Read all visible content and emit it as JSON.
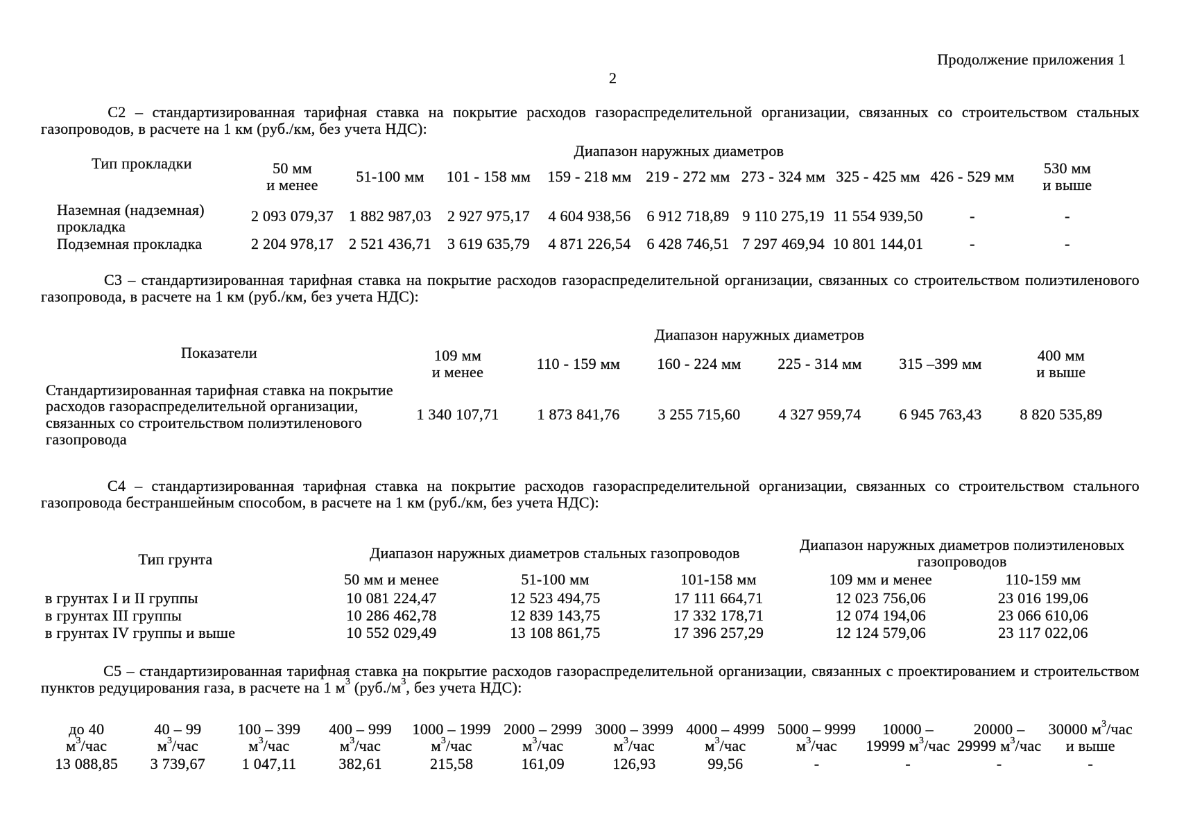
{
  "header": {
    "continuation": "Продолжение приложения 1",
    "page_number": "2"
  },
  "sections": {
    "c2": {
      "para_line1": "С2 – стандартизированная тарифная ставка на покрытие расходов газораспределительной организации, связанных со строительством стальных",
      "para_line2": "газопроводов, в расчете на 1 км (руб./км, без учета НДС):",
      "table": {
        "corner": "Тип прокладки",
        "group": "Диапазон наружных диаметров",
        "cols": [
          "50 мм\nи менее",
          "51-100 мм",
          "101 - 158 мм",
          "159 - 218 мм",
          "219 - 272 мм",
          "273 - 324 мм",
          "325 - 425 мм",
          "426 - 529 мм",
          "530 мм\nи выше"
        ],
        "rows": [
          {
            "label": "Наземная (надземная)\nпрокладка",
            "values": [
              "2 093 079,37",
              "1 882 987,03",
              "2 927 975,17",
              "4 604 938,56",
              "6 912 718,89",
              "9 110 275,19",
              "11 554 939,50",
              "-",
              "-"
            ]
          },
          {
            "label": "Подземная прокладка",
            "values": [
              "2 204 978,17",
              "2 521 436,71",
              "3 619 635,79",
              "4 871 226,54",
              "6 428 746,51",
              "7 297 469,94",
              "10 801 144,01",
              "-",
              "-"
            ]
          }
        ]
      }
    },
    "c3": {
      "para_line1": "С3 – стандартизированная тарифная ставка на покрытие расходов газораспределительной организации, связанных со строительством полиэтиленового",
      "para_line2": "газопровода, в расчете на 1 км (руб./км, без учета НДС):",
      "table": {
        "corner": "Показатели",
        "group": "Диапазон наружных диаметров",
        "cols": [
          "109 мм\nи менее",
          "110 - 159 мм",
          "160 - 224 мм",
          "225 - 314 мм",
          "315 –399 мм",
          "400 мм\nи выше"
        ],
        "rows": [
          {
            "label": "Стандартизированная тарифная ставка на покрытие\nрасходов газораспределительной организации,\nсвязанных со строительством полиэтиленового\nгазопровода",
            "values": [
              "1 340 107,71",
              "1 873 841,76",
              "3 255 715,60",
              "4 327 959,74",
              "6 945 763,43",
              "8 820 535,89"
            ]
          }
        ]
      }
    },
    "c4": {
      "para_line1": "С4 – стандартизированная тарифная ставка на покрытие расходов газораспределительной организации, связанных со строительством стального",
      "para_line2": "газопровода бестраншейным способом, в расчете на 1 км (руб./км, без учета НДС):",
      "table": {
        "corner": "Тип грунта",
        "group_steel": "Диапазон наружных диаметров стальных газопроводов",
        "group_poly": "Диапазон наружных диаметров полиэтиленовых\nгазопроводов",
        "cols": [
          "50 мм и менее",
          "51-100 мм",
          "101-158 мм",
          "109 мм и менее",
          "110-159 мм"
        ],
        "rows": [
          {
            "label": "в грунтах I и II группы",
            "values": [
              "10 081 224,47",
              "12 523 494,75",
              "17 111 664,71",
              "12 023 756,06",
              "23 016 199,06"
            ]
          },
          {
            "label": "в грунтах III группы",
            "values": [
              "10 286 462,78",
              "12 839 143,75",
              "17 332 178,71",
              "12 074 194,06",
              "23 066 610,06"
            ]
          },
          {
            "label": "в грунтах IV группы и выше",
            "values": [
              "10 552 029,49",
              "13 108 861,75",
              "17 396 257,29",
              "12 124 579,06",
              "23 117 022,06"
            ]
          }
        ]
      }
    },
    "c5": {
      "para_line1": "С5 – стандартизированная тарифная ставка на покрытие расходов газораспределительной организации, связанных с проектированием и строительством",
      "para_line2": "пунктов редуцирования газа, в расчете на 1 м3 (руб./м3, без учета НДС):",
      "table": {
        "cols": [
          "до 40\nм3/час",
          "40 – 99\nм3/час",
          "100 – 399\nм3/час",
          "400 – 999\nм3/час",
          "1000 – 1999\nм3/час",
          "2000 – 2999\nм3/час",
          "3000 – 3999\nм3/час",
          "4000 – 4999\nм3/час",
          "5000 – 9999\nм3/час",
          "10000 –\n19999 м3/час",
          "20000 –\n29999 м3/час",
          "30000 м3/час\nи выше"
        ],
        "values": [
          "13 088,85",
          "3 739,67",
          "1 047,11",
          "382,61",
          "215,58",
          "161,09",
          "126,93",
          "99,56",
          "-",
          "-",
          "-",
          "-"
        ]
      }
    }
  },
  "layout": {
    "t2_col_widths": [
      291,
      143,
      139,
      145,
      146,
      138,
      137,
      136,
      136,
      138
    ],
    "t3_col_widths": [
      514,
      174,
      174,
      174,
      174,
      174,
      174
    ],
    "t4_col_widths": [
      388,
      235,
      237,
      234,
      233,
      234
    ],
    "t5_col_width": 131.6
  }
}
